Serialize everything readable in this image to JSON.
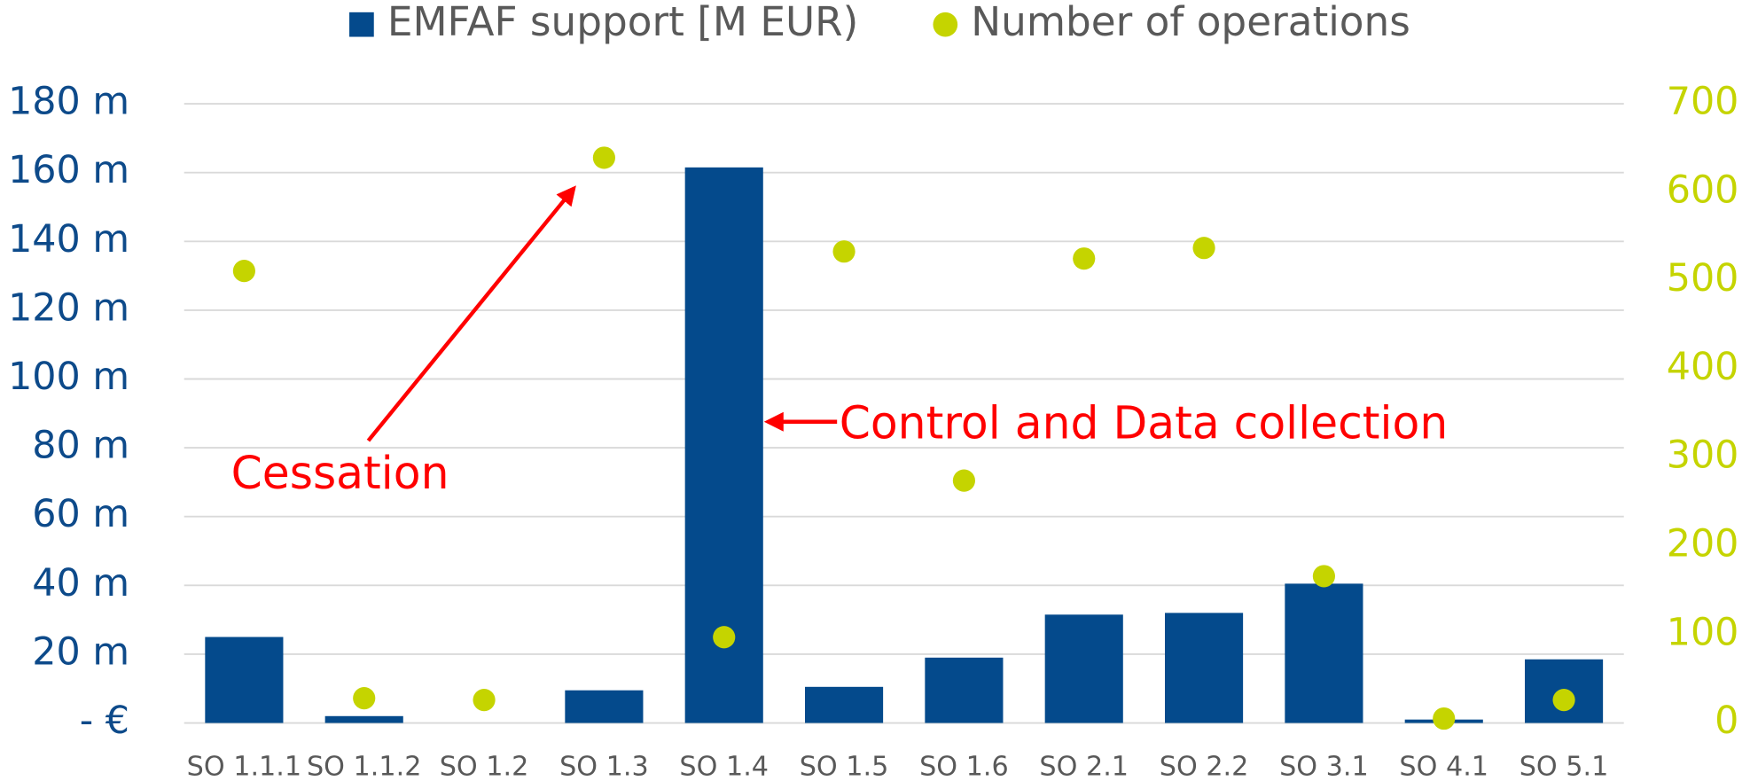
{
  "chart_data": {
    "type": "bar",
    "categories": [
      "SO 1.1.1",
      "SO 1.1.2",
      "SO 1.2",
      "SO 1.3",
      "SO 1.4",
      "SO 1.5",
      "SO 1.6",
      "SO 2.1",
      "SO 2.2",
      "SO 3.1",
      "SO 4.1",
      "SO 5.1"
    ],
    "series": [
      {
        "name": "EMFAF support [M EUR)",
        "color": "#044a8c",
        "type": "bar",
        "values": [
          25,
          2,
          0,
          9.5,
          161.5,
          10.5,
          19,
          31.5,
          32,
          40.5,
          1,
          18.5
        ]
      },
      {
        "name": "Number of operations",
        "color": "#c5d400",
        "type": "scatter",
        "axis": "y2",
        "values": [
          511,
          28,
          26,
          639,
          97,
          533,
          274,
          525,
          537,
          166,
          5,
          26
        ]
      }
    ],
    "ylim": [
      0,
      180
    ],
    "yticks": [
      {
        "value": 0,
        "label": "- €"
      },
      {
        "value": 20,
        "label": "20 m"
      },
      {
        "value": 40,
        "label": "40 m"
      },
      {
        "value": 60,
        "label": "60 m"
      },
      {
        "value": 80,
        "label": "80 m"
      },
      {
        "value": 100,
        "label": "100 m"
      },
      {
        "value": 120,
        "label": "120 m"
      },
      {
        "value": 140,
        "label": "140 m"
      },
      {
        "value": 160,
        "label": "160 m"
      },
      {
        "value": 180,
        "label": "180 m"
      }
    ],
    "y2lim": [
      0,
      700
    ],
    "y2ticks": [
      0,
      100,
      200,
      300,
      400,
      500,
      600,
      700
    ],
    "grid": true,
    "legend": "top",
    "annotations": [
      {
        "text": "Cessation"
      },
      {
        "text": "Control and Data collection"
      }
    ]
  }
}
